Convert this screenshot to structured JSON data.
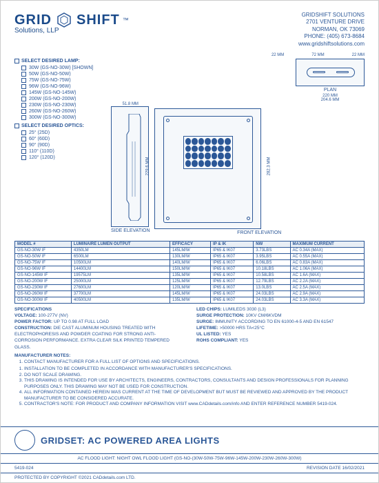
{
  "company": {
    "name": "GRID",
    "name2": "SHIFT",
    "tm": "™",
    "sub": "Solutions, LLP"
  },
  "contact": {
    "l1": "GRIDSHIFT SOLUTIONS",
    "l2": "2701 VENTURE DRIVE",
    "l3": "NORMAN, OK 73069",
    "l4": "PHONE: (405) 673-8684",
    "l5": "www.gridshiftsolutions.com"
  },
  "lamp_section": "SELECT DESIRED LAMP:",
  "lamps": [
    "30W (GS-NO-30W) [SHOWN]",
    "50W (GS-NO-50W)",
    "75W (GS-NO-75W)",
    "96W (GS-NO-96W)",
    "145W (GS-NO-145W)",
    "200W (GS-NO-200W)",
    "230W (GS-NO-230W)",
    "260W (GS-NO-260W)",
    "300W (GS-NO-300W)"
  ],
  "optics_section": "SELECT DESIRED OPTICS:",
  "optics": [
    "25° (25D)",
    "60° (60D)",
    "90° (90D)",
    "110° (110D)",
    "120° (120D)"
  ],
  "dims": {
    "top1": "22 MM",
    "top2": "72 MM",
    "top3": "22 MM",
    "plan": "PLAN",
    "width": "220 MM",
    "inner_w": "204.6 MM",
    "side_w": "51.8 MM",
    "side_label": "SIDE ELEVATION",
    "front_h": "229.6 MM",
    "front_h2": "282.3 MM",
    "front_label": "FRONT ELEVATION"
  },
  "table": {
    "headers": [
      "MODEL #",
      "LUMINAIRE LUMEN OUTPUT",
      "EFFICACY",
      "IP & IK",
      "NW",
      "MAXIMUM CURRENT"
    ],
    "rows": [
      [
        "GS-NO-30W IF",
        "4350LM",
        "145LM/W",
        "IP65 & IK07",
        "3.73LBS",
        "AC 0.34A (MAX)"
      ],
      [
        "GS-NO-50W IF",
        "6500LM",
        "130LM/W",
        "IP65 & IK07",
        "3.95LBS",
        "AC 0.55A (MAX)"
      ],
      [
        "GS-NO-75W IF",
        "10500LM",
        "140LM/W",
        "IP65 & IK07",
        "6.06LBS",
        "AC 0.83A (MAX)"
      ],
      [
        "GS-NO-96W IF",
        "14400LM",
        "150LM/W",
        "IP65 & IK07",
        "10.18LBS",
        "AC 1.06A (MAX)"
      ],
      [
        "GS-NO-145W IF",
        "19575LM",
        "135LM/W",
        "IP65 & IK07",
        "10.58LBS",
        "AC 1.6A (MAX)"
      ],
      [
        "GS-NO-200W IF",
        "25000LM",
        "125LM/W",
        "IP65 & IK07",
        "12.79LBS",
        "AC 2.2A (MAX)"
      ],
      [
        "GS-NO-230W IF",
        "27600LM",
        "120LM/W",
        "IP65 & IK07",
        "13.0LBS",
        "AC 2.5A (MAX)"
      ],
      [
        "GS-NO-260W IF",
        "37700LM",
        "145LM/W",
        "IP65 & IK07",
        "24.03LBS",
        "AC 2.9A (MAX)"
      ],
      [
        "GS-NO-300W IF",
        "40500LM",
        "135LM/W",
        "IP65 & IK07",
        "24.03LBS",
        "AC 3.3A (MAX)"
      ]
    ]
  },
  "specs_title": "SPECIFICATIONS",
  "specs_left": [
    {
      "k": "VOLTAGE:",
      "v": " 100-277V (NV)"
    },
    {
      "k": "POWER FACTOR:",
      "v": " UP TO 0.98 AT FULL LOAD"
    },
    {
      "k": "CONSTRUCTION:",
      "v": " DIE CAST ALUMINUM HOUSING TREATED WITH ELECTROPHORESIS AND POWDER COATING FOR STRONG ANTI-CORROSION PERFORMANCE. EXTRA CLEAR SILK PRINTED TEMPERED GLASS."
    }
  ],
  "specs_right": [
    {
      "k": "LED CHIPS:",
      "v": " LUMILEDS 3030 (L3)"
    },
    {
      "k": "SURGE PROTECTION:",
      "v": " 10KV CM/6KVDM"
    },
    {
      "k": "SURGE:",
      "v": " IMMUNITY ACCORDING TO EN 61000-4-5 AND EN 61547"
    },
    {
      "k": "LIFETIME:",
      "v": " >50000 HRS TA<25°C"
    },
    {
      "k": "UL LISTED:",
      "v": " YES"
    },
    {
      "k": "ROHS COMPLIANT:",
      "v": " YES"
    }
  ],
  "mfr_title": "MANUFACTURER NOTES:",
  "mfr_notes": [
    "CONTACT MANUFACTURER FOR A FULL LIST OF OPTIONS AND SPECIFICATIONS."
  ],
  "gen_notes": [
    "INSTALLATION TO BE COMPLETED IN ACCORDANCE WITH MANUFACTURER'S SPECIFICATIONS.",
    "DO NOT SCALE DRAWING.",
    "THIS DRAWING IS INTENDED FOR USE BY ARCHITECTS, ENGINEERS, CONTRACTORS, CONSULTANTS AND DESIGN PROFESSIONALS FOR PLANNING PURPOSES ONLY. THIS DRAWING MAY NOT BE USED FOR CONSTRUCTION.",
    "ALL INFORMATION CONTAINED HEREIN WAS CURRENT AT THE TIME OF DEVELOPMENT BUT MUST BE REVIEWED AND APPROVED BY THE PRODUCT MANUFACTURER TO BE CONSIDERED ACCURATE.",
    "CONTRACTOR'S NOTE: FOR PRODUCT AND COMPANY INFORMATION VISIT www.CADdetails.com/info AND ENTER REFERENCE NUMBER   5419-024."
  ],
  "title": "GRIDSET: AC POWERED AREA LIGHTS",
  "subtitle": "AC FLOOD LIGHT: NIGHT OWL FLOOD LIGHT (GS-NO-(30W-50W-75W-96W-145W-200W-230W-260W-300W)",
  "ref": "5419-024",
  "copyright": "PROTECTED BY COPYRIGHT ©2021 CADdetails.com LTD.",
  "revision": "REVISION DATE  16/02/2021"
}
